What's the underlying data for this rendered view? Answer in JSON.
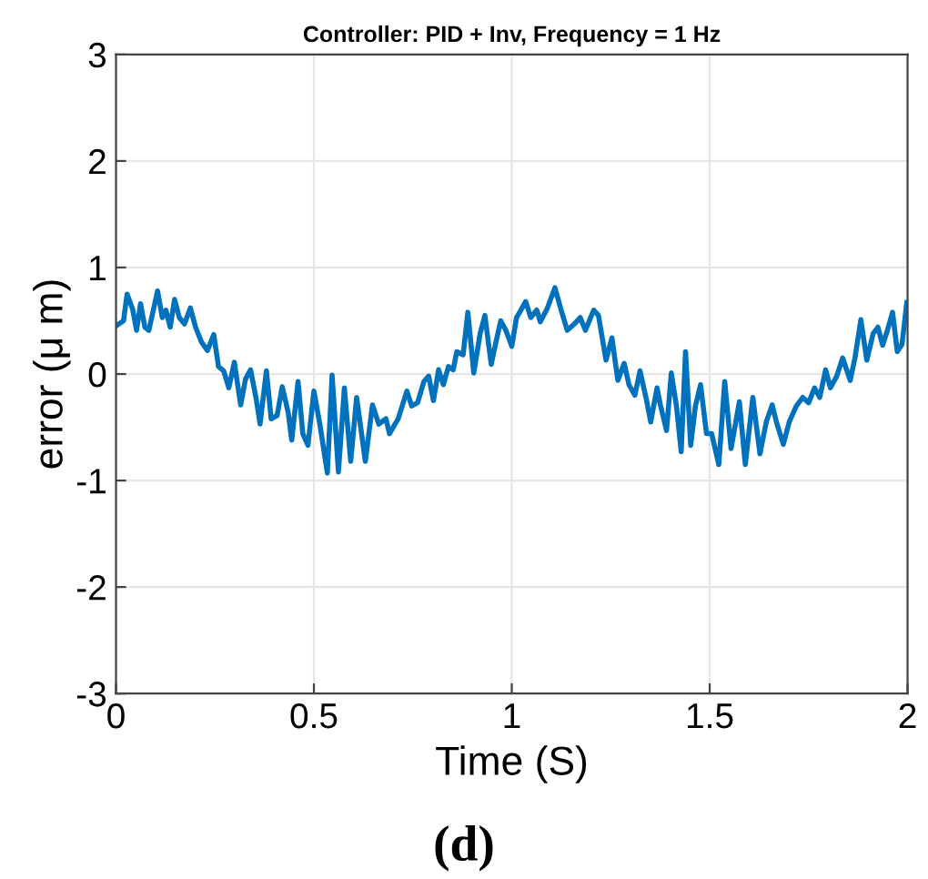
{
  "chart_data": {
    "type": "line",
    "title": "Controller: PID + Inv, Frequency = 1 Hz",
    "xlabel": "Time (S)",
    "ylabel": "error (μ m)",
    "annotations": [
      "(d)"
    ],
    "grid": true,
    "xlim": [
      0,
      2
    ],
    "ylim": [
      -3,
      3
    ],
    "xticks": [
      0,
      0.5,
      1,
      1.5,
      2
    ],
    "yticks": [
      -3,
      -2,
      -1,
      0,
      1,
      2,
      3
    ],
    "x": [
      0,
      0.019,
      0.028,
      0.042,
      0.052,
      0.062,
      0.073,
      0.083,
      0.105,
      0.117,
      0.126,
      0.137,
      0.148,
      0.16,
      0.173,
      0.188,
      0.201,
      0.216,
      0.231,
      0.247,
      0.259,
      0.272,
      0.285,
      0.299,
      0.315,
      0.327,
      0.34,
      0.355,
      0.364,
      0.38,
      0.392,
      0.407,
      0.42,
      0.435,
      0.444,
      0.46,
      0.472,
      0.485,
      0.5,
      0.515,
      0.534,
      0.546,
      0.562,
      0.577,
      0.593,
      0.608,
      0.63,
      0.648,
      0.664,
      0.682,
      0.691,
      0.713,
      0.735,
      0.747,
      0.762,
      0.778,
      0.79,
      0.802,
      0.815,
      0.827,
      0.84,
      0.852,
      0.861,
      0.877,
      0.889,
      0.904,
      0.92,
      0.932,
      0.948,
      0.96,
      0.972,
      0.985,
      1.0,
      1.012,
      1.02,
      1.035,
      1.048,
      1.063,
      1.072,
      1.089,
      1.109,
      1.124,
      1.14,
      1.158,
      1.173,
      1.186,
      1.207,
      1.219,
      1.238,
      1.253,
      1.268,
      1.284,
      1.296,
      1.311,
      1.324,
      1.339,
      1.351,
      1.367,
      1.376,
      1.391,
      1.403,
      1.416,
      1.428,
      1.439,
      1.452,
      1.464,
      1.477,
      1.492,
      1.505,
      1.523,
      1.538,
      1.554,
      1.575,
      1.59,
      1.609,
      1.627,
      1.643,
      1.658,
      1.67,
      1.686,
      1.701,
      1.719,
      1.735,
      1.75,
      1.765,
      1.778,
      1.793,
      1.805,
      1.821,
      1.836,
      1.855,
      1.867,
      1.882,
      1.897,
      1.913,
      1.925,
      1.937,
      1.949,
      1.962,
      1.974,
      1.986,
      1.998
    ],
    "series": [
      {
        "color": "#0072bd",
        "values": [
          0.45,
          0.5,
          0.75,
          0.61,
          0.41,
          0.66,
          0.44,
          0.41,
          0.78,
          0.53,
          0.6,
          0.44,
          0.7,
          0.53,
          0.47,
          0.62,
          0.44,
          0.3,
          0.22,
          0.37,
          0.07,
          0.03,
          -0.13,
          0.11,
          -0.29,
          -0.05,
          0.04,
          -0.25,
          -0.47,
          0.03,
          -0.42,
          -0.39,
          -0.12,
          -0.36,
          -0.62,
          -0.07,
          -0.56,
          -0.67,
          -0.16,
          -0.47,
          -0.93,
          -0.01,
          -0.92,
          -0.13,
          -0.82,
          -0.22,
          -0.82,
          -0.29,
          -0.47,
          -0.42,
          -0.56,
          -0.42,
          -0.16,
          -0.3,
          -0.27,
          -0.07,
          -0.02,
          -0.25,
          0.04,
          -0.1,
          0.07,
          0.04,
          0.21,
          0.18,
          0.58,
          0.01,
          0.38,
          0.55,
          0.09,
          0.3,
          0.5,
          0.41,
          0.26,
          0.53,
          0.58,
          0.68,
          0.53,
          0.6,
          0.49,
          0.61,
          0.81,
          0.61,
          0.41,
          0.47,
          0.53,
          0.41,
          0.6,
          0.55,
          0.13,
          0.34,
          -0.06,
          0.1,
          -0.1,
          -0.2,
          0.03,
          -0.22,
          -0.45,
          -0.13,
          -0.3,
          -0.53,
          0.01,
          -0.3,
          -0.73,
          0.21,
          -0.67,
          -0.3,
          -0.1,
          -0.56,
          -0.56,
          -0.85,
          -0.07,
          -0.7,
          -0.26,
          -0.85,
          -0.22,
          -0.75,
          -0.45,
          -0.29,
          -0.47,
          -0.66,
          -0.45,
          -0.3,
          -0.22,
          -0.27,
          -0.13,
          -0.22,
          0.04,
          -0.13,
          -0.02,
          0.15,
          -0.06,
          0.15,
          0.51,
          0.13,
          0.38,
          0.44,
          0.27,
          0.41,
          0.58,
          0.21,
          0.28,
          0.67
        ]
      }
    ]
  }
}
